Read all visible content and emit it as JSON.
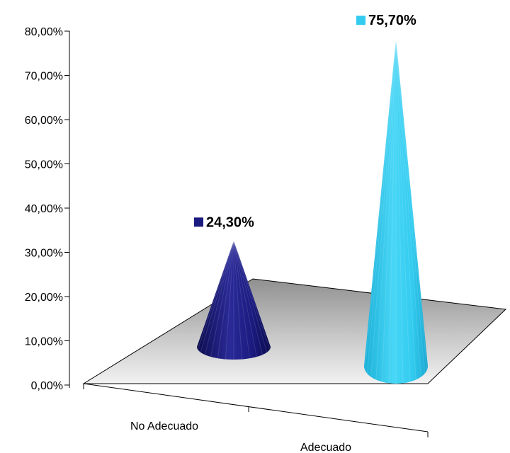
{
  "chart_data": {
    "type": "bar",
    "style": "3d-cone",
    "title": "",
    "xlabel": "",
    "ylabel": "",
    "categories": [
      "No Adecuado",
      "Adecuado"
    ],
    "values": [
      24.3,
      75.7
    ],
    "value_labels": [
      "24,30%",
      "75,70%"
    ],
    "colors": [
      "#1a1a80",
      "#33ccf0"
    ],
    "ylim": [
      0,
      80
    ],
    "y_ticks": [
      0,
      10,
      20,
      30,
      40,
      50,
      60,
      70,
      80
    ],
    "y_tick_labels": [
      "0,00%",
      "10,00%",
      "20,00%",
      "30,00%",
      "40,00%",
      "50,00%",
      "60,00%",
      "70,00%",
      "80,00%"
    ],
    "grid": false,
    "legend": "none"
  }
}
